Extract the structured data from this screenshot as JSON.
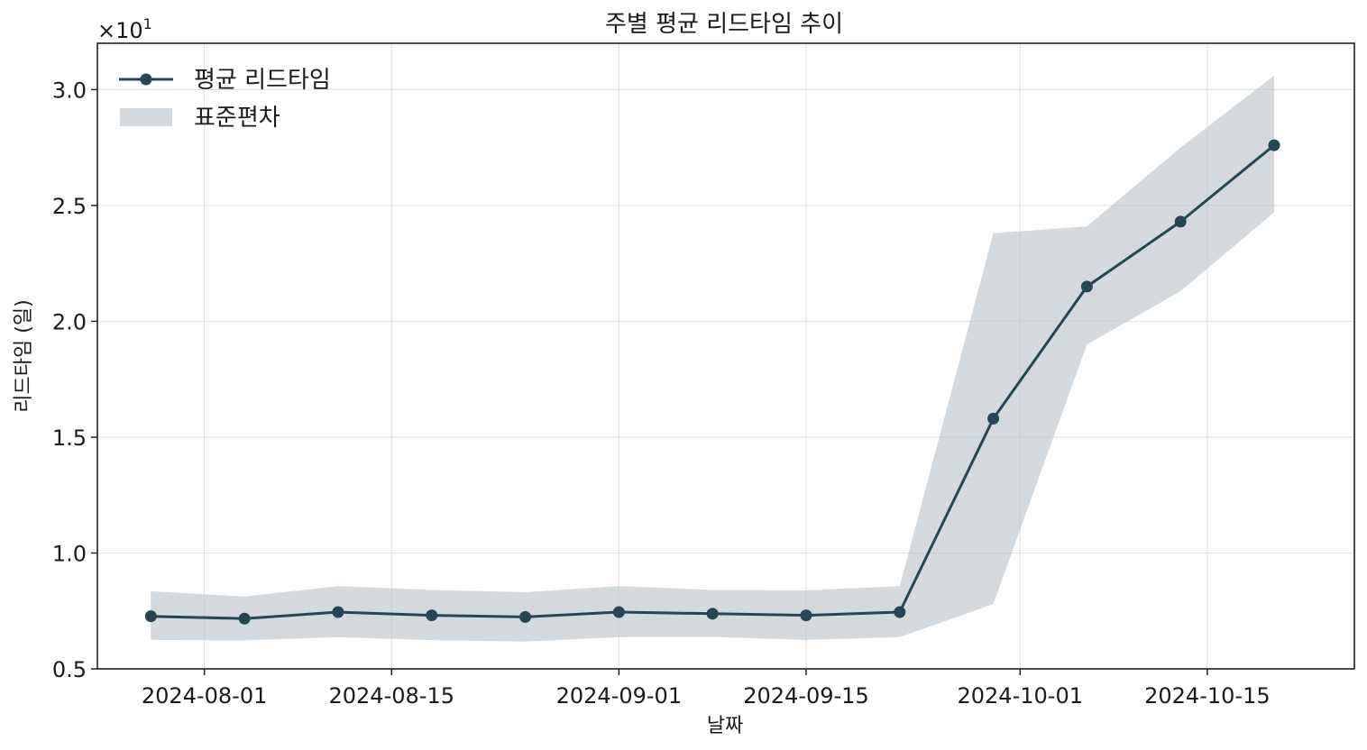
{
  "chart_data": {
    "type": "line",
    "title": "주별 평균 리드타임 추이",
    "xlabel": "날짜",
    "ylabel": "리드타임 (일)",
    "y_offset_label": "×10",
    "y_offset_exponent": "1",
    "x": [
      "2024-07-28",
      "2024-08-04",
      "2024-08-11",
      "2024-08-18",
      "2024-08-25",
      "2024-09-01",
      "2024-09-08",
      "2024-09-15",
      "2024-09-22",
      "2024-09-29",
      "2024-10-06",
      "2024-10-13",
      "2024-10-20"
    ],
    "series": [
      {
        "name": "평균 리드타임",
        "color": "#264653",
        "values": [
          7.27,
          7.17,
          7.45,
          7.31,
          7.24,
          7.45,
          7.38,
          7.31,
          7.45,
          15.8,
          21.5,
          24.3,
          27.6
        ]
      }
    ],
    "band": {
      "name": "표준편차",
      "color": "#bcc4cb",
      "upper": [
        8.35,
        8.12,
        8.57,
        8.41,
        8.31,
        8.57,
        8.41,
        8.39,
        8.57,
        23.8,
        24.1,
        27.5,
        30.6
      ],
      "lower": [
        6.25,
        6.23,
        6.37,
        6.24,
        6.18,
        6.37,
        6.38,
        6.25,
        6.37,
        7.8,
        19.0,
        21.3,
        24.7
      ]
    },
    "x_range": [
      "2024-07-24",
      "2024-10-26"
    ],
    "ylim": [
      5,
      32
    ],
    "y_ticks": [
      5,
      10,
      15,
      20,
      25,
      30
    ],
    "y_tick_labels": [
      "0.5",
      "1.0",
      "1.5",
      "2.0",
      "2.5",
      "3.0"
    ],
    "x_ticks": [
      "2024-08-01",
      "2024-08-15",
      "2024-09-01",
      "2024-09-15",
      "2024-10-01",
      "2024-10-15"
    ],
    "x_tick_labels": [
      "2024-08-01",
      "2024-08-15",
      "2024-09-01",
      "2024-09-15",
      "2024-10-01",
      "2024-10-15"
    ],
    "grid": true,
    "legend_position": "top-left"
  }
}
